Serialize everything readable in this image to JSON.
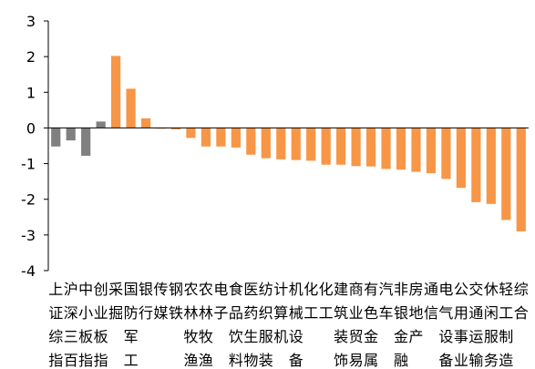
{
  "chart_data": {
    "type": "bar",
    "ylim": [
      -4,
      3
    ],
    "yticks": [
      3,
      2,
      1,
      0,
      -1,
      -2,
      -3,
      -4
    ],
    "grid": false,
    "legend": "none",
    "colors": {
      "index": "#808080",
      "sector": "#F79646"
    },
    "categories": [
      "上证综指",
      "沪深三百",
      "中小板指",
      "创业板指",
      "采掘",
      "国防军工",
      "银行",
      "传媒",
      "钢铁",
      "农林牧渔",
      "农林牧渔",
      "电子",
      "食品饮料",
      "医药生物",
      "纺织服装",
      "计算机",
      "机械设备",
      "化工",
      "化工",
      "建筑装饰",
      "商业贸易",
      "有色金属",
      "汽车",
      "非银金融",
      "房地产",
      "通信",
      "电气设备",
      "公用事业",
      "交通运输",
      "休闲服务",
      "轻工制造",
      "综合"
    ],
    "category_lines": [
      [
        "上",
        "证",
        "综",
        "指"
      ],
      [
        "沪",
        "深",
        "三",
        "百"
      ],
      [
        "中",
        "小",
        "板",
        "指"
      ],
      [
        "创",
        "业",
        "板",
        "指"
      ],
      [
        "采",
        "掘",
        "",
        ""
      ],
      [
        "国",
        "防",
        "军",
        "工"
      ],
      [
        "银",
        "行",
        "",
        ""
      ],
      [
        "传",
        "媒",
        "",
        ""
      ],
      [
        "钢",
        "铁",
        "",
        ""
      ],
      [
        "农",
        "林",
        "牧",
        "渔"
      ],
      [
        "农",
        "林",
        "牧",
        "渔"
      ],
      [
        "电",
        "子",
        "",
        ""
      ],
      [
        "食",
        "品",
        "饮",
        "料"
      ],
      [
        "医",
        "药",
        "生",
        "物"
      ],
      [
        "纺",
        "织",
        "服",
        "装"
      ],
      [
        "计",
        "算",
        "机",
        ""
      ],
      [
        "机",
        "械",
        "设",
        "备"
      ],
      [
        "化",
        "工",
        "",
        ""
      ],
      [
        "化",
        "工",
        "",
        ""
      ],
      [
        "建",
        "筑",
        "装",
        "饰"
      ],
      [
        "商",
        "业",
        "贸",
        "易"
      ],
      [
        "有",
        "色",
        "金",
        "属"
      ],
      [
        "汽",
        "车",
        "",
        ""
      ],
      [
        "非",
        "银",
        "金",
        "融"
      ],
      [
        "房",
        "地",
        "产",
        ""
      ],
      [
        "通",
        "信",
        "",
        ""
      ],
      [
        "电",
        "气",
        "设",
        "备"
      ],
      [
        "公",
        "用",
        "事",
        "业"
      ],
      [
        "交",
        "通",
        "运",
        "输"
      ],
      [
        "休",
        "闲",
        "服",
        "务"
      ],
      [
        "轻",
        "工",
        "制",
        "造"
      ],
      [
        "综",
        "合",
        "",
        ""
      ]
    ],
    "values": [
      -0.52,
      -0.35,
      -0.78,
      0.18,
      2.02,
      1.1,
      0.27,
      -0.02,
      -0.04,
      -0.28,
      -0.52,
      -0.52,
      -0.55,
      -0.75,
      -0.85,
      -0.88,
      -0.9,
      -0.92,
      -1.03,
      -1.03,
      -1.07,
      -1.08,
      -1.15,
      -1.17,
      -1.23,
      -1.27,
      -1.43,
      -1.68,
      -2.08,
      -2.13,
      -2.58,
      -2.9
    ],
    "bar_kind": [
      "index",
      "index",
      "index",
      "index",
      "sector",
      "sector",
      "sector",
      "sector",
      "sector",
      "sector",
      "sector",
      "sector",
      "sector",
      "sector",
      "sector",
      "sector",
      "sector",
      "sector",
      "sector",
      "sector",
      "sector",
      "sector",
      "sector",
      "sector",
      "sector",
      "sector",
      "sector",
      "sector",
      "sector",
      "sector",
      "sector",
      "sector"
    ]
  }
}
